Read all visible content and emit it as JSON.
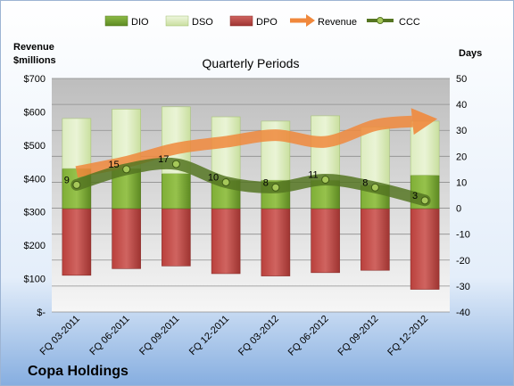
{
  "chart_data": {
    "type": "bar",
    "subtitle": "Quarterly Periods",
    "company": "Copa Holdings",
    "left_axis_title": [
      "Revenue",
      "$millions"
    ],
    "right_axis_title": "Days",
    "categories": [
      "FQ 03-2011",
      "FQ 06-2011",
      "FQ 09-2011",
      "FQ 12-2011",
      "FQ 03-2012",
      "FQ 06-2012",
      "FQ 09-2012",
      "FQ 12-2012"
    ],
    "left_axis": {
      "min": 0,
      "max": 700,
      "step": 100,
      "tick_labels": [
        "$-",
        "$100",
        "$200",
        "$300",
        "$400",
        "$500",
        "$600",
        "$700"
      ]
    },
    "right_axis": {
      "min": -40,
      "max": 50,
      "step": 10
    },
    "legend_position": "top",
    "series": [
      {
        "name": "DIO",
        "color": "#6e9a2c",
        "bar_low": [
          310,
          310,
          310,
          310,
          310,
          310,
          310,
          310
        ],
        "bar_high": [
          430,
          430,
          415,
          395,
          395,
          395,
          380,
          410
        ]
      },
      {
        "name": "DSO",
        "color": "#d6e9b6",
        "bar_low": [
          430,
          430,
          415,
          395,
          395,
          395,
          380,
          410
        ],
        "bar_high": [
          580,
          608,
          615,
          585,
          572,
          588,
          555,
          572
        ]
      },
      {
        "name": "DPO",
        "color": "#c0504d",
        "bar_low": [
          110,
          130,
          138,
          115,
          108,
          118,
          125,
          68
        ],
        "bar_high": [
          310,
          310,
          310,
          310,
          310,
          310,
          310,
          310
        ]
      },
      {
        "name": "Revenue",
        "color": "#f0883c",
        "values": [
          420,
          450,
          490,
          510,
          530,
          510,
          560,
          575
        ]
      },
      {
        "name": "CCC",
        "color": "#557522",
        "values": [
          9,
          15,
          17,
          10,
          8,
          11,
          8,
          3
        ],
        "labels": [
          "9",
          "15",
          "17",
          "10",
          "8",
          "11",
          "8",
          "3"
        ]
      }
    ],
    "grid": true
  }
}
